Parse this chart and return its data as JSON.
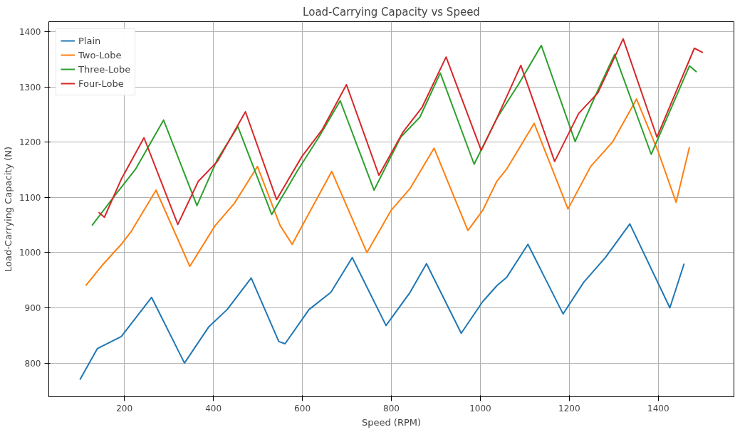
{
  "chart_data": {
    "type": "line",
    "title": "Load-Carrying Capacity vs Speed",
    "xlabel": "Speed (RPM)",
    "ylabel": "Load-Carrying Capacity (N)",
    "xlim": [
      30,
      1570
    ],
    "ylim": [
      739,
      1418
    ],
    "xticks": [
      200,
      400,
      600,
      800,
      1000,
      1200,
      1400
    ],
    "yticks": [
      800,
      900,
      1000,
      1100,
      1200,
      1300,
      1400
    ],
    "grid": true,
    "legend": "top left",
    "line_style": "solid",
    "series": [
      {
        "name": "Plain",
        "color": "#1f77b4",
        "x": [
          100,
          139,
          193,
          261,
          335,
          390,
          431,
          485,
          547,
          561,
          615,
          664,
          712,
          788,
          842,
          879,
          957,
          1005,
          1037,
          1059,
          1107,
          1186,
          1232,
          1281,
          1336,
          1426,
          1458
        ],
        "values": [
          770,
          826,
          848,
          919,
          800,
          866,
          897,
          954,
          839,
          835,
          897,
          928,
          991,
          868,
          928,
          980,
          854,
          911,
          940,
          955,
          1015,
          889,
          946,
          991,
          1052,
          900,
          980
        ]
      },
      {
        "name": "Two-Lobe",
        "color": "#ff7f0e",
        "x": [
          113,
          150,
          193,
          215,
          271,
          347,
          404,
          447,
          499,
          550,
          577,
          666,
          745,
          799,
          842,
          896,
          972,
          1005,
          1037,
          1059,
          1121,
          1197,
          1248,
          1297,
          1351,
          1400,
          1440,
          1470
        ],
        "values": [
          940,
          977,
          1015,
          1038,
          1113,
          975,
          1049,
          1089,
          1156,
          1049,
          1015,
          1147,
          1000,
          1076,
          1116,
          1189,
          1040,
          1076,
          1129,
          1151,
          1234,
          1079,
          1156,
          1200,
          1278,
          1182,
          1091,
          1191
        ]
      },
      {
        "name": "Three-Lobe",
        "color": "#2ca02c",
        "x": [
          127,
          182,
          225,
          288,
          363,
          409,
          455,
          531,
          588,
          637,
          685,
          761,
          821,
          864,
          910,
          986,
          1037,
          1086,
          1137,
          1213,
          1259,
          1302,
          1384,
          1470,
          1486
        ],
        "values": [
          1049,
          1107,
          1151,
          1240,
          1085,
          1169,
          1228,
          1069,
          1147,
          1209,
          1275,
          1113,
          1209,
          1245,
          1325,
          1160,
          1243,
          1305,
          1375,
          1201,
          1285,
          1359,
          1178,
          1338,
          1327
        ]
      },
      {
        "name": "Four-Lobe",
        "color": "#d62728",
        "x": [
          142,
          155,
          193,
          244,
          320,
          366,
          409,
          472,
          542,
          599,
          645,
          699,
          772,
          826,
          869,
          923,
          1002,
          1037,
          1091,
          1167,
          1221,
          1264,
          1321,
          1397,
          1481,
          1500
        ],
        "values": [
          1073,
          1064,
          1133,
          1208,
          1051,
          1129,
          1165,
          1255,
          1096,
          1174,
          1223,
          1304,
          1140,
          1218,
          1263,
          1354,
          1185,
          1243,
          1339,
          1165,
          1252,
          1289,
          1387,
          1209,
          1370,
          1362
        ]
      }
    ]
  }
}
